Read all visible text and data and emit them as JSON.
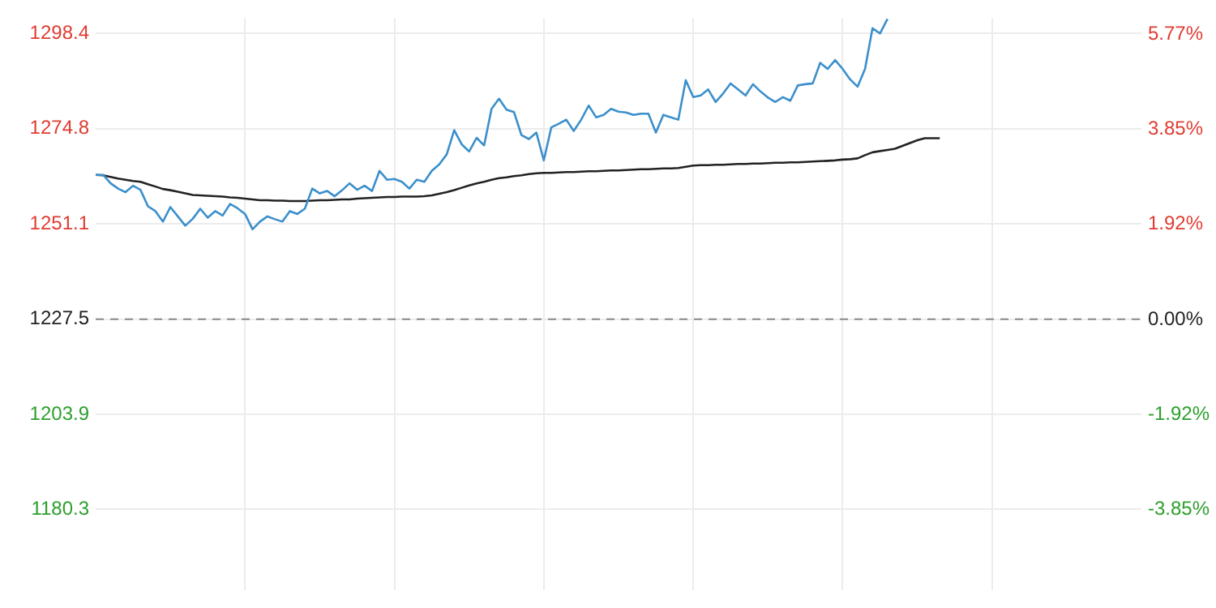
{
  "chart_data": {
    "type": "line",
    "categories": [
      null,
      null,
      null,
      null,
      null,
      null,
      null,
      null,
      null,
      null,
      null,
      null,
      null,
      null,
      null,
      null,
      null,
      null,
      null,
      null,
      null,
      null,
      null,
      null,
      null,
      null,
      null,
      null,
      null,
      null,
      null,
      null,
      null,
      null,
      null,
      null,
      null,
      null,
      null,
      null,
      null,
      null,
      null,
      null,
      null,
      null,
      null,
      null,
      null,
      null,
      null,
      null,
      null,
      null,
      null,
      null,
      null,
      null,
      null,
      null,
      null,
      null,
      null,
      null,
      null,
      null,
      null,
      null,
      null,
      null,
      null,
      null,
      null,
      null,
      null,
      null,
      null,
      null,
      null,
      null,
      null,
      null,
      null,
      null,
      null,
      null,
      null,
      null,
      null,
      null,
      null,
      null,
      null,
      null,
      null,
      null,
      null,
      null,
      null,
      null,
      null,
      null,
      null,
      null,
      null,
      null,
      null,
      null,
      null,
      null,
      null,
      null,
      null,
      null,
      null,
      null,
      null,
      null,
      null,
      null,
      null,
      null,
      null,
      null,
      null,
      null,
      null,
      null,
      null,
      null,
      null,
      null,
      null,
      null,
      null,
      null,
      null,
      null,
      null,
      null,
      null
    ],
    "ylim": [
      1160.3,
      1302.2
    ],
    "yticks": [
      1180.3,
      1203.9,
      1227.5,
      1251.1,
      1274.8,
      1298.4
    ],
    "y2lim": [
      -5.47,
      6.09
    ],
    "y2ticks": [
      {
        "value": -3.85,
        "label": "-3.85%"
      },
      {
        "value": -1.92,
        "label": "-1.92%"
      },
      {
        "value": 0,
        "label": "0.00%"
      },
      {
        "value": 1.92,
        "label": "1.92%"
      },
      {
        "value": 3.85,
        "label": "3.85%"
      },
      {
        "value": 5.77,
        "label": "5.77%"
      }
    ],
    "tick_labels": "y",
    "grid": true,
    "legend": false,
    "marker": "none",
    "ref_lines": [
      {
        "axis": "y",
        "value": 1227.5,
        "label": null,
        "color": "#888888",
        "line_style": "dashed"
      }
    ],
    "series": [
      {
        "color": "#3b8fcc",
        "values": [
          1263.3,
          1263.3,
          1261.2,
          1259.9,
          1259.0,
          1260.6,
          1259.6,
          1255.5,
          1254.3,
          1251.7,
          1255.3,
          1253.0,
          1250.7,
          1252.4,
          1254.9,
          1252.7,
          1254.3,
          1253.2,
          1256.1,
          1255.0,
          1253.6,
          1249.8,
          1251.7,
          1253.0,
          1252.3,
          1251.7,
          1254.3,
          1253.6,
          1254.9,
          1259.9,
          1258.7,
          1259.3,
          1258.0,
          1259.5,
          1261.2,
          1259.6,
          1260.6,
          1259.3,
          1264.3,
          1262.1,
          1262.3,
          1261.6,
          1259.9,
          1262.1,
          1261.6,
          1264.3,
          1265.9,
          1268.4,
          1274.4,
          1270.9,
          1269.1,
          1272.5,
          1270.6,
          1279.7,
          1282.2,
          1279.5,
          1278.9,
          1273.2,
          1272.2,
          1273.8,
          1266.9,
          1275.1,
          1276.0,
          1277.0,
          1274.2,
          1277.0,
          1280.5,
          1277.6,
          1278.2,
          1279.7,
          1279.0,
          1278.8,
          1278.2,
          1278.5,
          1278.5,
          1273.8,
          1278.2,
          1277.6,
          1277.0,
          1286.8,
          1282.6,
          1283.0,
          1284.5,
          1281.4,
          1283.5,
          1286.0,
          1284.5,
          1283.0,
          1285.8,
          1284.0,
          1282.5,
          1281.4,
          1282.6,
          1281.7,
          1285.5,
          1285.8,
          1286.0,
          1291.1,
          1289.6,
          1291.8,
          1289.6,
          1287.0,
          1285.2,
          1289.6,
          1299.7,
          1298.4,
          1302.0,
          null,
          null,
          null,
          null,
          null,
          null,
          null,
          null,
          null,
          null,
          null,
          null,
          null,
          null,
          null,
          null,
          null,
          null,
          null,
          null,
          null,
          null,
          null,
          null,
          null,
          null,
          null,
          null,
          null,
          null,
          null,
          null,
          null,
          null
        ]
      },
      {
        "color": "#222222",
        "values": [
          1263.3,
          1263.2,
          1262.8,
          1262.4,
          1262.1,
          1261.8,
          1261.6,
          1261.0,
          1260.4,
          1259.8,
          1259.5,
          1259.1,
          1258.7,
          1258.3,
          1258.2,
          1258.1,
          1258.0,
          1257.9,
          1257.7,
          1257.6,
          1257.4,
          1257.2,
          1257.0,
          1257.0,
          1256.9,
          1256.9,
          1256.8,
          1256.8,
          1256.8,
          1256.9,
          1257.0,
          1257.0,
          1257.1,
          1257.2,
          1257.2,
          1257.4,
          1257.5,
          1257.6,
          1257.7,
          1257.8,
          1257.8,
          1257.9,
          1257.9,
          1257.9,
          1258.0,
          1258.2,
          1258.6,
          1259.0,
          1259.5,
          1260.1,
          1260.7,
          1261.2,
          1261.6,
          1262.1,
          1262.5,
          1262.7,
          1263.0,
          1263.2,
          1263.5,
          1263.7,
          1263.8,
          1263.8,
          1263.9,
          1264.0,
          1264.0,
          1264.1,
          1264.2,
          1264.2,
          1264.3,
          1264.4,
          1264.4,
          1264.5,
          1264.6,
          1264.7,
          1264.7,
          1264.8,
          1264.9,
          1264.9,
          1265.0,
          1265.3,
          1265.6,
          1265.7,
          1265.7,
          1265.8,
          1265.8,
          1265.9,
          1266.0,
          1266.0,
          1266.1,
          1266.1,
          1266.2,
          1266.3,
          1266.3,
          1266.4,
          1266.4,
          1266.5,
          1266.6,
          1266.7,
          1266.8,
          1266.9,
          1267.1,
          1267.2,
          1267.4,
          1268.2,
          1268.9,
          1269.2,
          1269.5,
          1269.8,
          1270.5,
          1271.2,
          1271.9,
          1272.4,
          1272.4,
          1272.4,
          null,
          null,
          null,
          null,
          null,
          null,
          null,
          null,
          null,
          null,
          null,
          null,
          null,
          null,
          null,
          null,
          null,
          null,
          null,
          null,
          null,
          null,
          null,
          null,
          null,
          null,
          null
        ]
      }
    ]
  }
}
